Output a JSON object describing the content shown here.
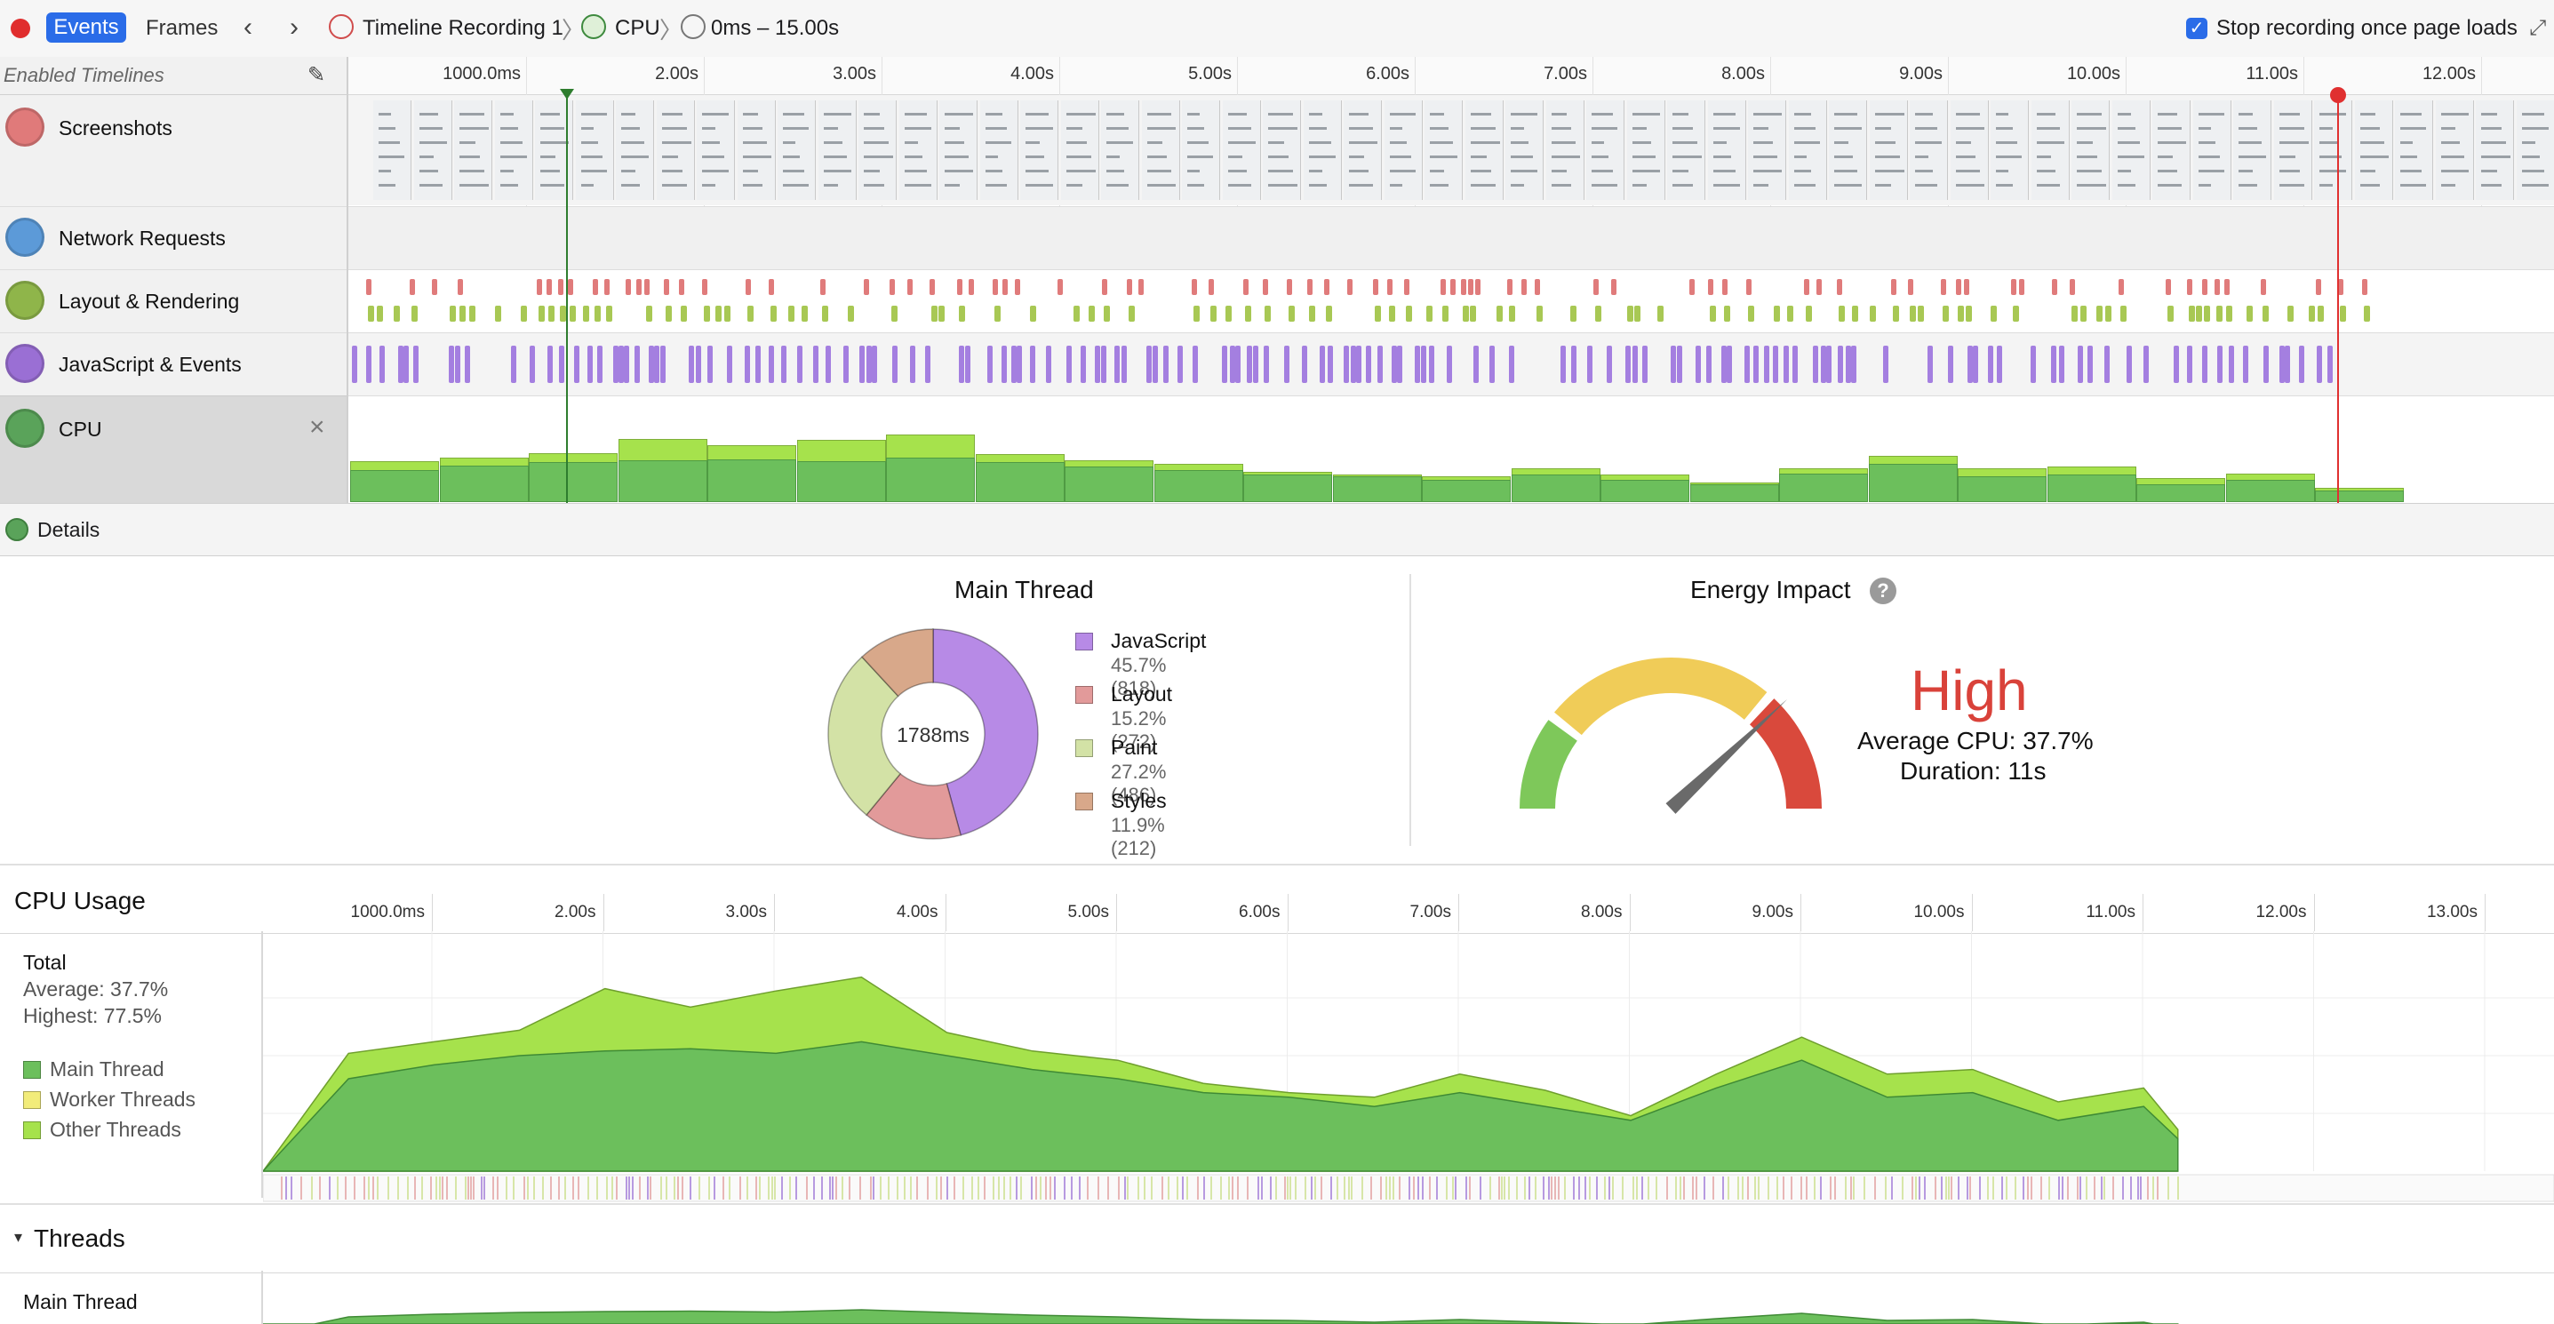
{
  "toolbar": {
    "tab_events": "Events",
    "tab_frames": "Frames",
    "breadcrumb_recording": "Timeline Recording 1",
    "breadcrumb_instrument": "CPU",
    "breadcrumb_range": "0ms – 15.00s",
    "stop_recording_label": "Stop recording once page loads",
    "stop_recording_checked": true
  },
  "timelines": {
    "header": "Enabled Timelines",
    "lanes": [
      {
        "name": "Screenshots",
        "icon": "camera-icon",
        "color": "#e07a7a"
      },
      {
        "name": "Network Requests",
        "icon": "network-arrows-icon",
        "color": "#5c9ad8"
      },
      {
        "name": "Layout & Rendering",
        "icon": "paintbrush-icon",
        "color": "#8fb54a"
      },
      {
        "name": "JavaScript & Events",
        "icon": "script-icon",
        "color": "#9a6fd4"
      },
      {
        "name": "CPU",
        "icon": "cpu-icon",
        "color": "#5aa35a"
      }
    ],
    "ruler_ticks": [
      "1000.0ms",
      "2.00s",
      "3.00s",
      "4.00s",
      "5.00s",
      "6.00s",
      "7.00s",
      "8.00s",
      "9.00s",
      "10.00s",
      "11.00s",
      "12.00s"
    ]
  },
  "details": {
    "label": "Details",
    "main_thread": {
      "title": "Main Thread",
      "total": "1788ms",
      "segments": [
        {
          "name": "JavaScript",
          "value": "45.7% (818)",
          "ms": 818,
          "color": "#b78ae6"
        },
        {
          "name": "Layout",
          "value": "15.2% (272)",
          "ms": 272,
          "color": "#e29a9a"
        },
        {
          "name": "Paint",
          "value": "27.2% (486)",
          "ms": 486,
          "color": "#d3e2a6"
        },
        {
          "name": "Styles",
          "value": "11.9% (212)",
          "ms": 212,
          "color": "#d8a88a"
        }
      ]
    },
    "energy": {
      "title": "Energy Impact",
      "help_glyph": "?",
      "level": "High",
      "average_cpu": "Average CPU: 37.7%",
      "duration": "Duration: 11s",
      "needle_fraction": 0.8
    }
  },
  "cpu_usage": {
    "title": "CPU Usage",
    "total_label": "Total",
    "average": "Average: 37.7%",
    "highest": "Highest: 77.5%",
    "legend": [
      {
        "name": "Main Thread",
        "color": "#6cbf5c"
      },
      {
        "name": "Worker Threads",
        "color": "#f2ec7a"
      },
      {
        "name": "Other Threads",
        "color": "#a6e24c"
      }
    ],
    "ticks": [
      "1000.0ms",
      "2.00s",
      "3.00s",
      "4.00s",
      "5.00s",
      "6.00s",
      "7.00s",
      "8.00s",
      "9.00s",
      "10.00s",
      "11.00s",
      "12.00s",
      "13.00s"
    ]
  },
  "threads": {
    "title": "Threads",
    "first_thread": "Main Thread"
  },
  "chart_data": {
    "type": "area",
    "x": [
      0,
      0.5,
      1.0,
      1.5,
      2.0,
      2.5,
      3.0,
      3.5,
      4.0,
      4.5,
      5.0,
      5.5,
      6.0,
      6.5,
      7.0,
      7.5,
      8.0,
      8.5,
      9.0,
      9.5,
      10.0,
      10.5,
      11.0,
      11.2
    ],
    "ylim": [
      0,
      100
    ],
    "series": [
      {
        "name": "Main Thread",
        "values": [
          0,
          40,
          46,
          50,
          52,
          53,
          51,
          56,
          50,
          44,
          40,
          34,
          32,
          28,
          34,
          28,
          22,
          36,
          48,
          32,
          34,
          22,
          28,
          14
        ]
      },
      {
        "name": "Other Threads",
        "values": [
          0,
          51,
          56,
          61,
          79,
          71,
          78,
          84,
          60,
          52,
          48,
          38,
          34,
          32,
          42,
          35,
          24,
          42,
          58,
          42,
          44,
          30,
          36,
          18
        ]
      }
    ]
  }
}
